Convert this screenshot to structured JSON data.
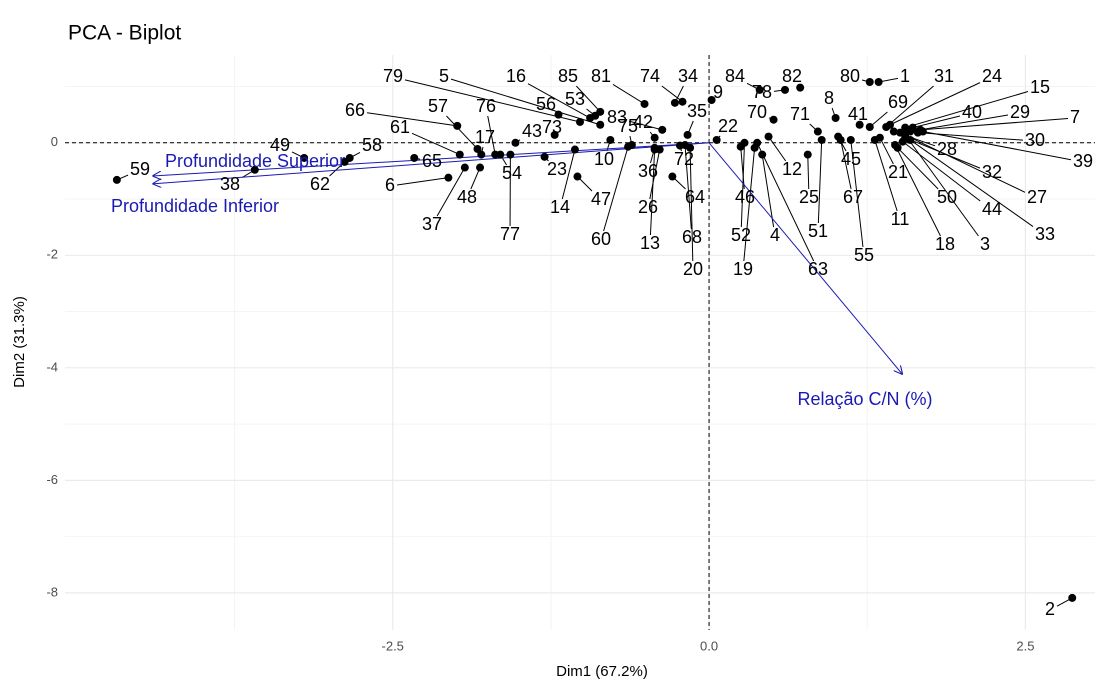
{
  "chart_data": {
    "type": "scatter",
    "title": "PCA - Biplot",
    "x_label": "Dim1 (67.2%)",
    "y_label": "Dim2 (31.3%)",
    "xlim": [
      -5.09,
      3.05
    ],
    "ylim": [
      -8.66,
      1.56
    ],
    "xticks": [
      -2.5,
      {
        "value": 0,
        "label": "0.0"
      },
      2.5
    ],
    "yticks": [
      -8,
      -6,
      -4,
      -2,
      0
    ],
    "grid": true,
    "color": "#000000",
    "variable_color": "#1a1ab3",
    "point_labels": [
      "1",
      "2",
      "3",
      "4",
      "5",
      "6",
      "7",
      "8",
      "9",
      "10",
      "11",
      "12",
      "13",
      "14",
      "15",
      "16",
      "17",
      "18",
      "19",
      "20",
      "21",
      "22",
      "23",
      "24",
      "25",
      "26",
      "27",
      "28",
      "29",
      "30",
      "31",
      "32",
      "33",
      "34",
      "35",
      "36",
      "37",
      "38",
      "39",
      "40",
      "41",
      "42",
      "43",
      "44",
      "45",
      "46",
      "47",
      "48",
      "49",
      "50",
      "51",
      "52",
      "53",
      "54",
      "55",
      "56",
      "57",
      "58",
      "59",
      "60",
      "61",
      "62",
      "63",
      "64",
      "65",
      "66",
      "67",
      "68",
      "69",
      "70",
      "71",
      "72",
      "73",
      "74",
      "75",
      "76",
      "77",
      "78",
      "79",
      "80",
      "81",
      "82",
      "83",
      "84",
      "85"
    ],
    "x": [
      1.34,
      2.87,
      1.55,
      0.42,
      -0.86,
      -2.06,
      1.67,
      1.0,
      0.02,
      -0.78,
      1.31,
      0.47,
      -0.43,
      -1.06,
      1.55,
      -0.94,
      -1.8,
      1.47,
      0.36,
      -0.15,
      1.35,
      0.06,
      -1.3,
      1.43,
      0.78,
      -0.39,
      1.51,
      1.46,
      1.59,
      1.65,
      1.4,
      1.55,
      1.59,
      -0.27,
      -0.17,
      -0.43,
      -1.93,
      -3.59,
      1.69,
      1.61,
      1.19,
      -0.43,
      -1.53,
      1.53,
      1.02,
      0.25,
      -1.04,
      -1.81,
      -3.2,
      1.49,
      0.89,
      0.28,
      -0.9,
      -1.65,
      1.12,
      -1.19,
      -1.83,
      -2.84,
      -4.68,
      -0.64,
      -1.97,
      -2.88,
      0.38,
      -0.29,
      -2.33,
      -1.99,
      1.04,
      -0.19,
      1.27,
      0.51,
      0.86,
      -0.23,
      -1.22,
      -0.21,
      -0.61,
      -1.69,
      -1.57,
      0.6,
      -1.02,
      1.27,
      -0.51,
      0.72,
      -0.37,
      0.4,
      -0.86
    ],
    "y": [
      1.08,
      -8.09,
      0.14,
      -0.21,
      0.32,
      -0.62,
      0.23,
      0.44,
      0.76,
      0.05,
      0.05,
      0.11,
      -0.12,
      -0.12,
      0.27,
      0.44,
      -0.21,
      -0.04,
      -0.09,
      -0.09,
      0.09,
      0.05,
      -0.25,
      0.32,
      -0.21,
      -0.12,
      0.18,
      0.2,
      0.2,
      0.18,
      0.28,
      0.09,
      0.05,
      0.71,
      0.14,
      -0.09,
      -0.44,
      -0.48,
      0.2,
      0.27,
      0.32,
      0.09,
      0.0,
      0.02,
      0.11,
      -0.07,
      -0.6,
      -0.44,
      -0.27,
      -0.09,
      0.05,
      0.0,
      0.48,
      -0.21,
      0.05,
      0.5,
      -0.11,
      -0.27,
      -0.66,
      -0.07,
      -0.21,
      -0.34,
      0.0,
      -0.6,
      -0.27,
      0.3,
      0.05,
      -0.04,
      0.28,
      0.41,
      0.2,
      -0.05,
      0.14,
      0.73,
      -0.04,
      -0.21,
      -0.21,
      0.94,
      0.37,
      1.08,
      0.69,
      0.98,
      0.23,
      0.94,
      0.55
    ],
    "variables": [
      {
        "name": "Profundidade Superior",
        "x": -4.4,
        "y": -0.59
      },
      {
        "name": "Profundidade Inferior",
        "x": -4.4,
        "y": -0.73
      },
      {
        "name": "Relação C/N (%)",
        "x": 1.53,
        "y": -4.12
      }
    ]
  }
}
